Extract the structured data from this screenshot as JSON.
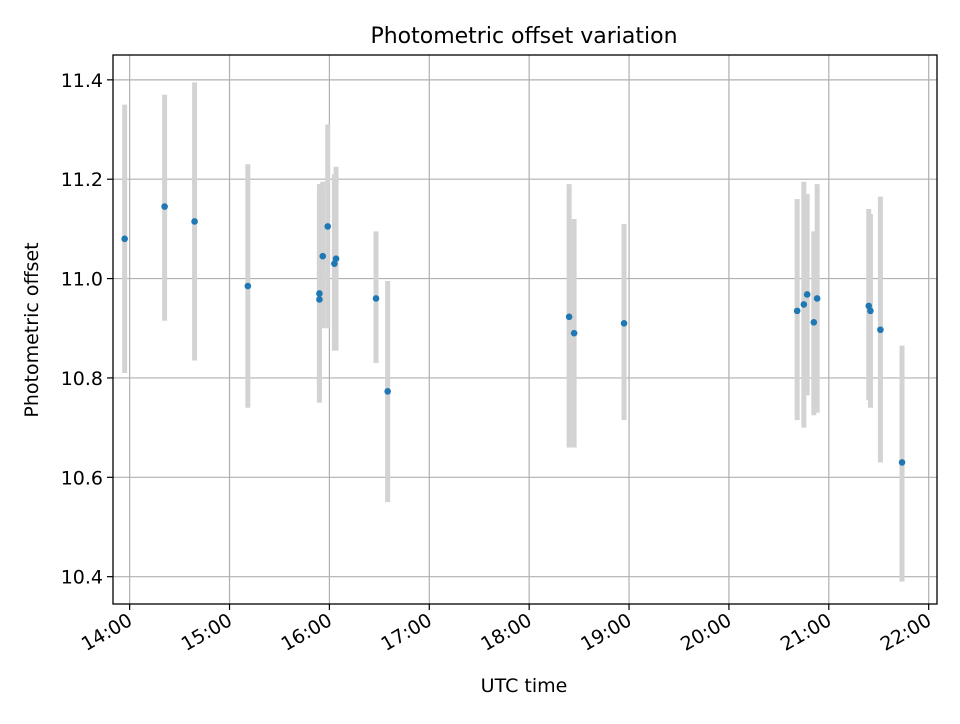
{
  "chart_data": {
    "type": "scatter",
    "title": "Photometric offset variation",
    "xlabel": "UTC time",
    "ylabel": "Photometric offset",
    "xlim": [
      "13:50",
      "22:05"
    ],
    "ylim": [
      10.345,
      11.45
    ],
    "grid": true,
    "xticks": [
      "14:00",
      "15:00",
      "16:00",
      "17:00",
      "18:00",
      "19:00",
      "20:00",
      "21:00",
      "22:00"
    ],
    "yticks": [
      "10.4",
      "10.6",
      "10.8",
      "11.0",
      "11.2",
      "11.4"
    ],
    "colors": {
      "point": "#1f77b4",
      "errorbar": "#d3d3d3",
      "grid": "#b0b0b0"
    },
    "points": [
      {
        "x": "13:57",
        "y": 11.08,
        "low": 10.81,
        "high": 11.35
      },
      {
        "x": "14:21",
        "y": 11.145,
        "low": 10.915,
        "high": 11.37
      },
      {
        "x": "14:39",
        "y": 11.115,
        "low": 10.835,
        "high": 11.395
      },
      {
        "x": "15:11",
        "y": 10.985,
        "low": 10.74,
        "high": 11.23
      },
      {
        "x": "15:54",
        "y": 10.97,
        "low": 10.75,
        "high": 11.19
      },
      {
        "x": "15:54",
        "y": 10.958,
        "low": 10.755,
        "high": 11.17
      },
      {
        "x": "15:56",
        "y": 11.045,
        "low": 10.9,
        "high": 11.195
      },
      {
        "x": "15:59",
        "y": 11.105,
        "low": 10.9,
        "high": 11.31
      },
      {
        "x": "16:03",
        "y": 11.03,
        "low": 10.855,
        "high": 11.21
      },
      {
        "x": "16:04",
        "y": 11.04,
        "low": 10.855,
        "high": 11.225
      },
      {
        "x": "16:28",
        "y": 10.96,
        "low": 10.83,
        "high": 11.095
      },
      {
        "x": "16:35",
        "y": 10.773,
        "low": 10.55,
        "high": 10.995
      },
      {
        "x": "18:24",
        "y": 10.923,
        "low": 10.66,
        "high": 11.19
      },
      {
        "x": "18:27",
        "y": 10.89,
        "low": 10.66,
        "high": 11.12
      },
      {
        "x": "18:57",
        "y": 10.91,
        "low": 10.715,
        "high": 11.11
      },
      {
        "x": "20:41",
        "y": 10.935,
        "low": 10.715,
        "high": 11.16
      },
      {
        "x": "20:45",
        "y": 10.948,
        "low": 10.7,
        "high": 11.195
      },
      {
        "x": "20:47",
        "y": 10.968,
        "low": 10.765,
        "high": 11.17
      },
      {
        "x": "20:51",
        "y": 10.912,
        "low": 10.725,
        "high": 11.095
      },
      {
        "x": "20:53",
        "y": 10.96,
        "low": 10.73,
        "high": 11.19
      },
      {
        "x": "21:24",
        "y": 10.945,
        "low": 10.755,
        "high": 11.14
      },
      {
        "x": "21:25",
        "y": 10.935,
        "low": 10.74,
        "high": 11.13
      },
      {
        "x": "21:31",
        "y": 10.897,
        "low": 10.63,
        "high": 11.165
      },
      {
        "x": "21:44",
        "y": 10.63,
        "low": 10.39,
        "high": 10.865
      }
    ]
  }
}
